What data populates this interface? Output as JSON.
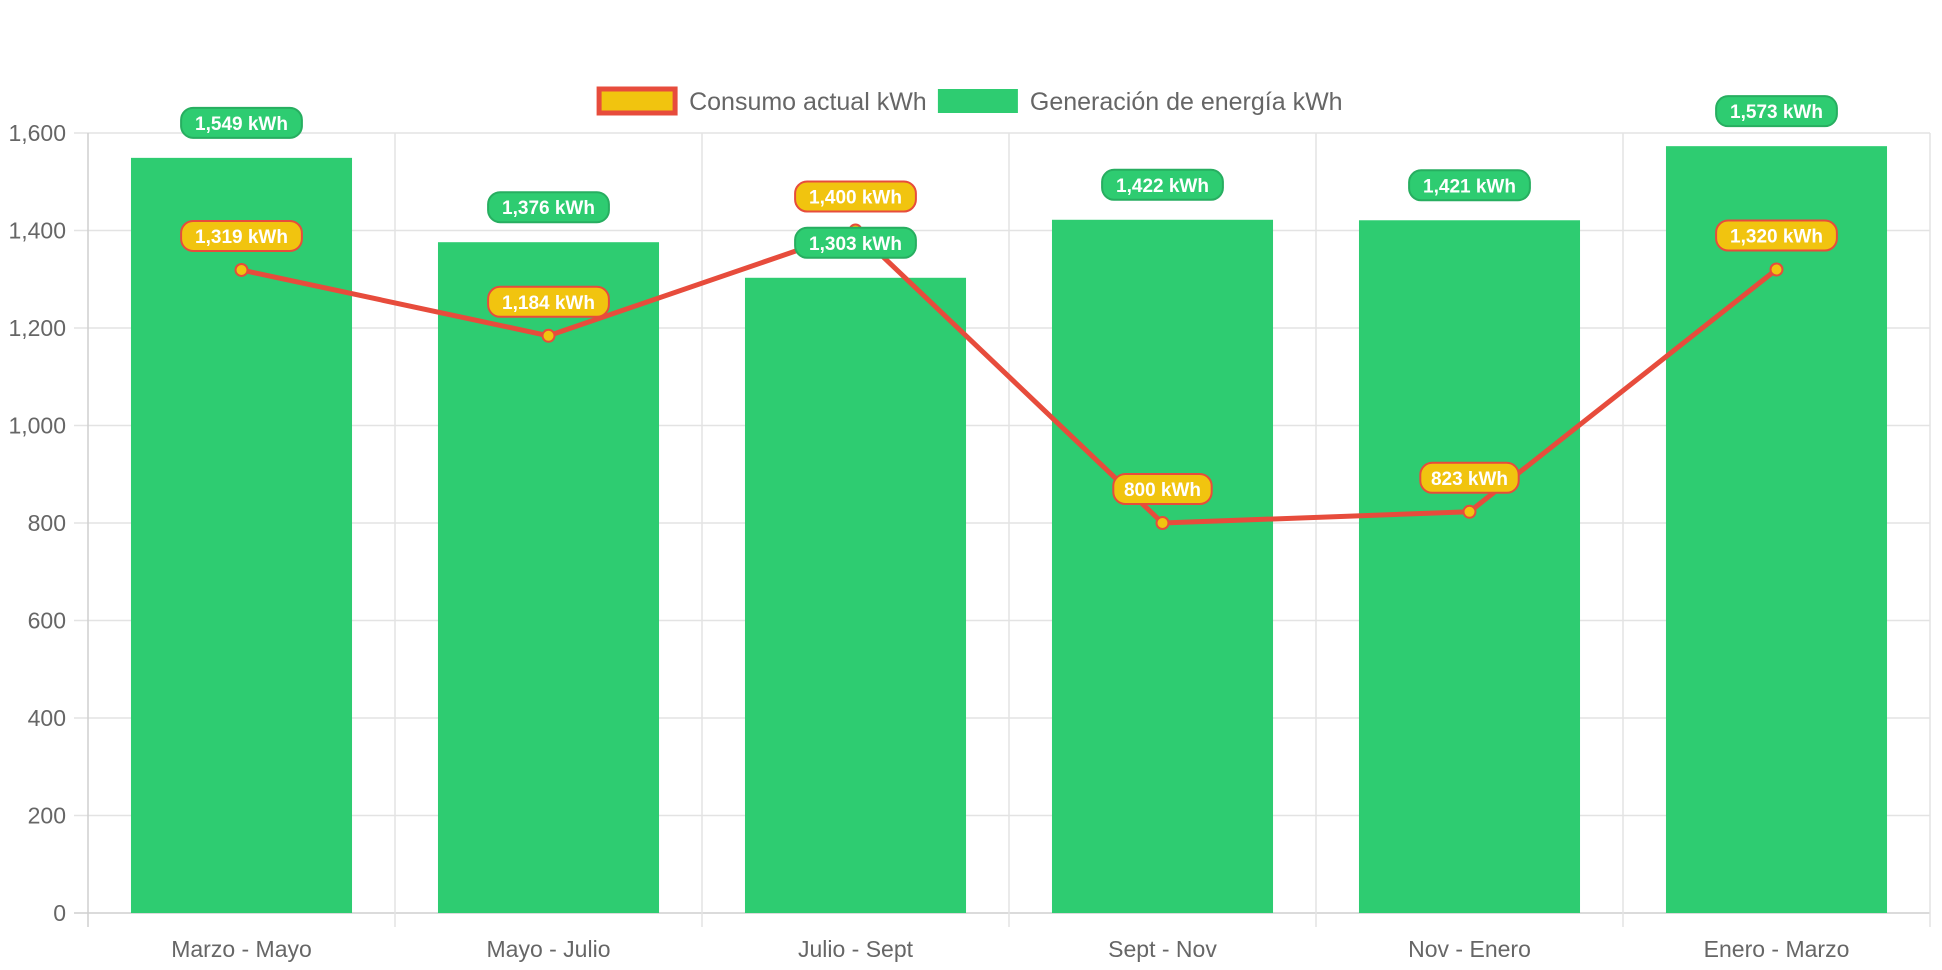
{
  "chart_data": {
    "type": "bar",
    "categories": [
      "Marzo - Mayo",
      "Mayo - Julio",
      "Julio - Sept",
      "Sept - Nov",
      "Nov - Enero",
      "Enero - Marzo"
    ],
    "series": [
      {
        "name": "Generación de energía kWh",
        "type": "bar",
        "values": [
          1549,
          1376,
          1303,
          1422,
          1421,
          1573
        ],
        "labels": [
          "1,549 kWh",
          "1,376 kWh",
          "1,303 kWh",
          "1,422 kWh",
          "1,421 kWh",
          "1,573 kWh"
        ],
        "color": "#2ecc71"
      },
      {
        "name": "Consumo actual kWh",
        "type": "line",
        "values": [
          1319,
          1184,
          1400,
          800,
          823,
          1320
        ],
        "labels": [
          "1,319 kWh",
          "1,184 kWh",
          "1,400 kWh",
          "800 kWh",
          "823 kWh",
          "1,320 kWh"
        ],
        "color": "#e74c3c",
        "fill_color": "#f1c40f"
      }
    ],
    "legend": {
      "position": "top",
      "order": [
        "Consumo actual kWh",
        "Generación de energía kWh"
      ]
    },
    "yticks": [
      "0",
      "200",
      "400",
      "600",
      "800",
      "1,000",
      "1,200",
      "1,400",
      "1,600"
    ],
    "ylim": [
      0,
      1600
    ],
    "grid": true,
    "title": "",
    "xlabel": "",
    "ylabel": ""
  }
}
